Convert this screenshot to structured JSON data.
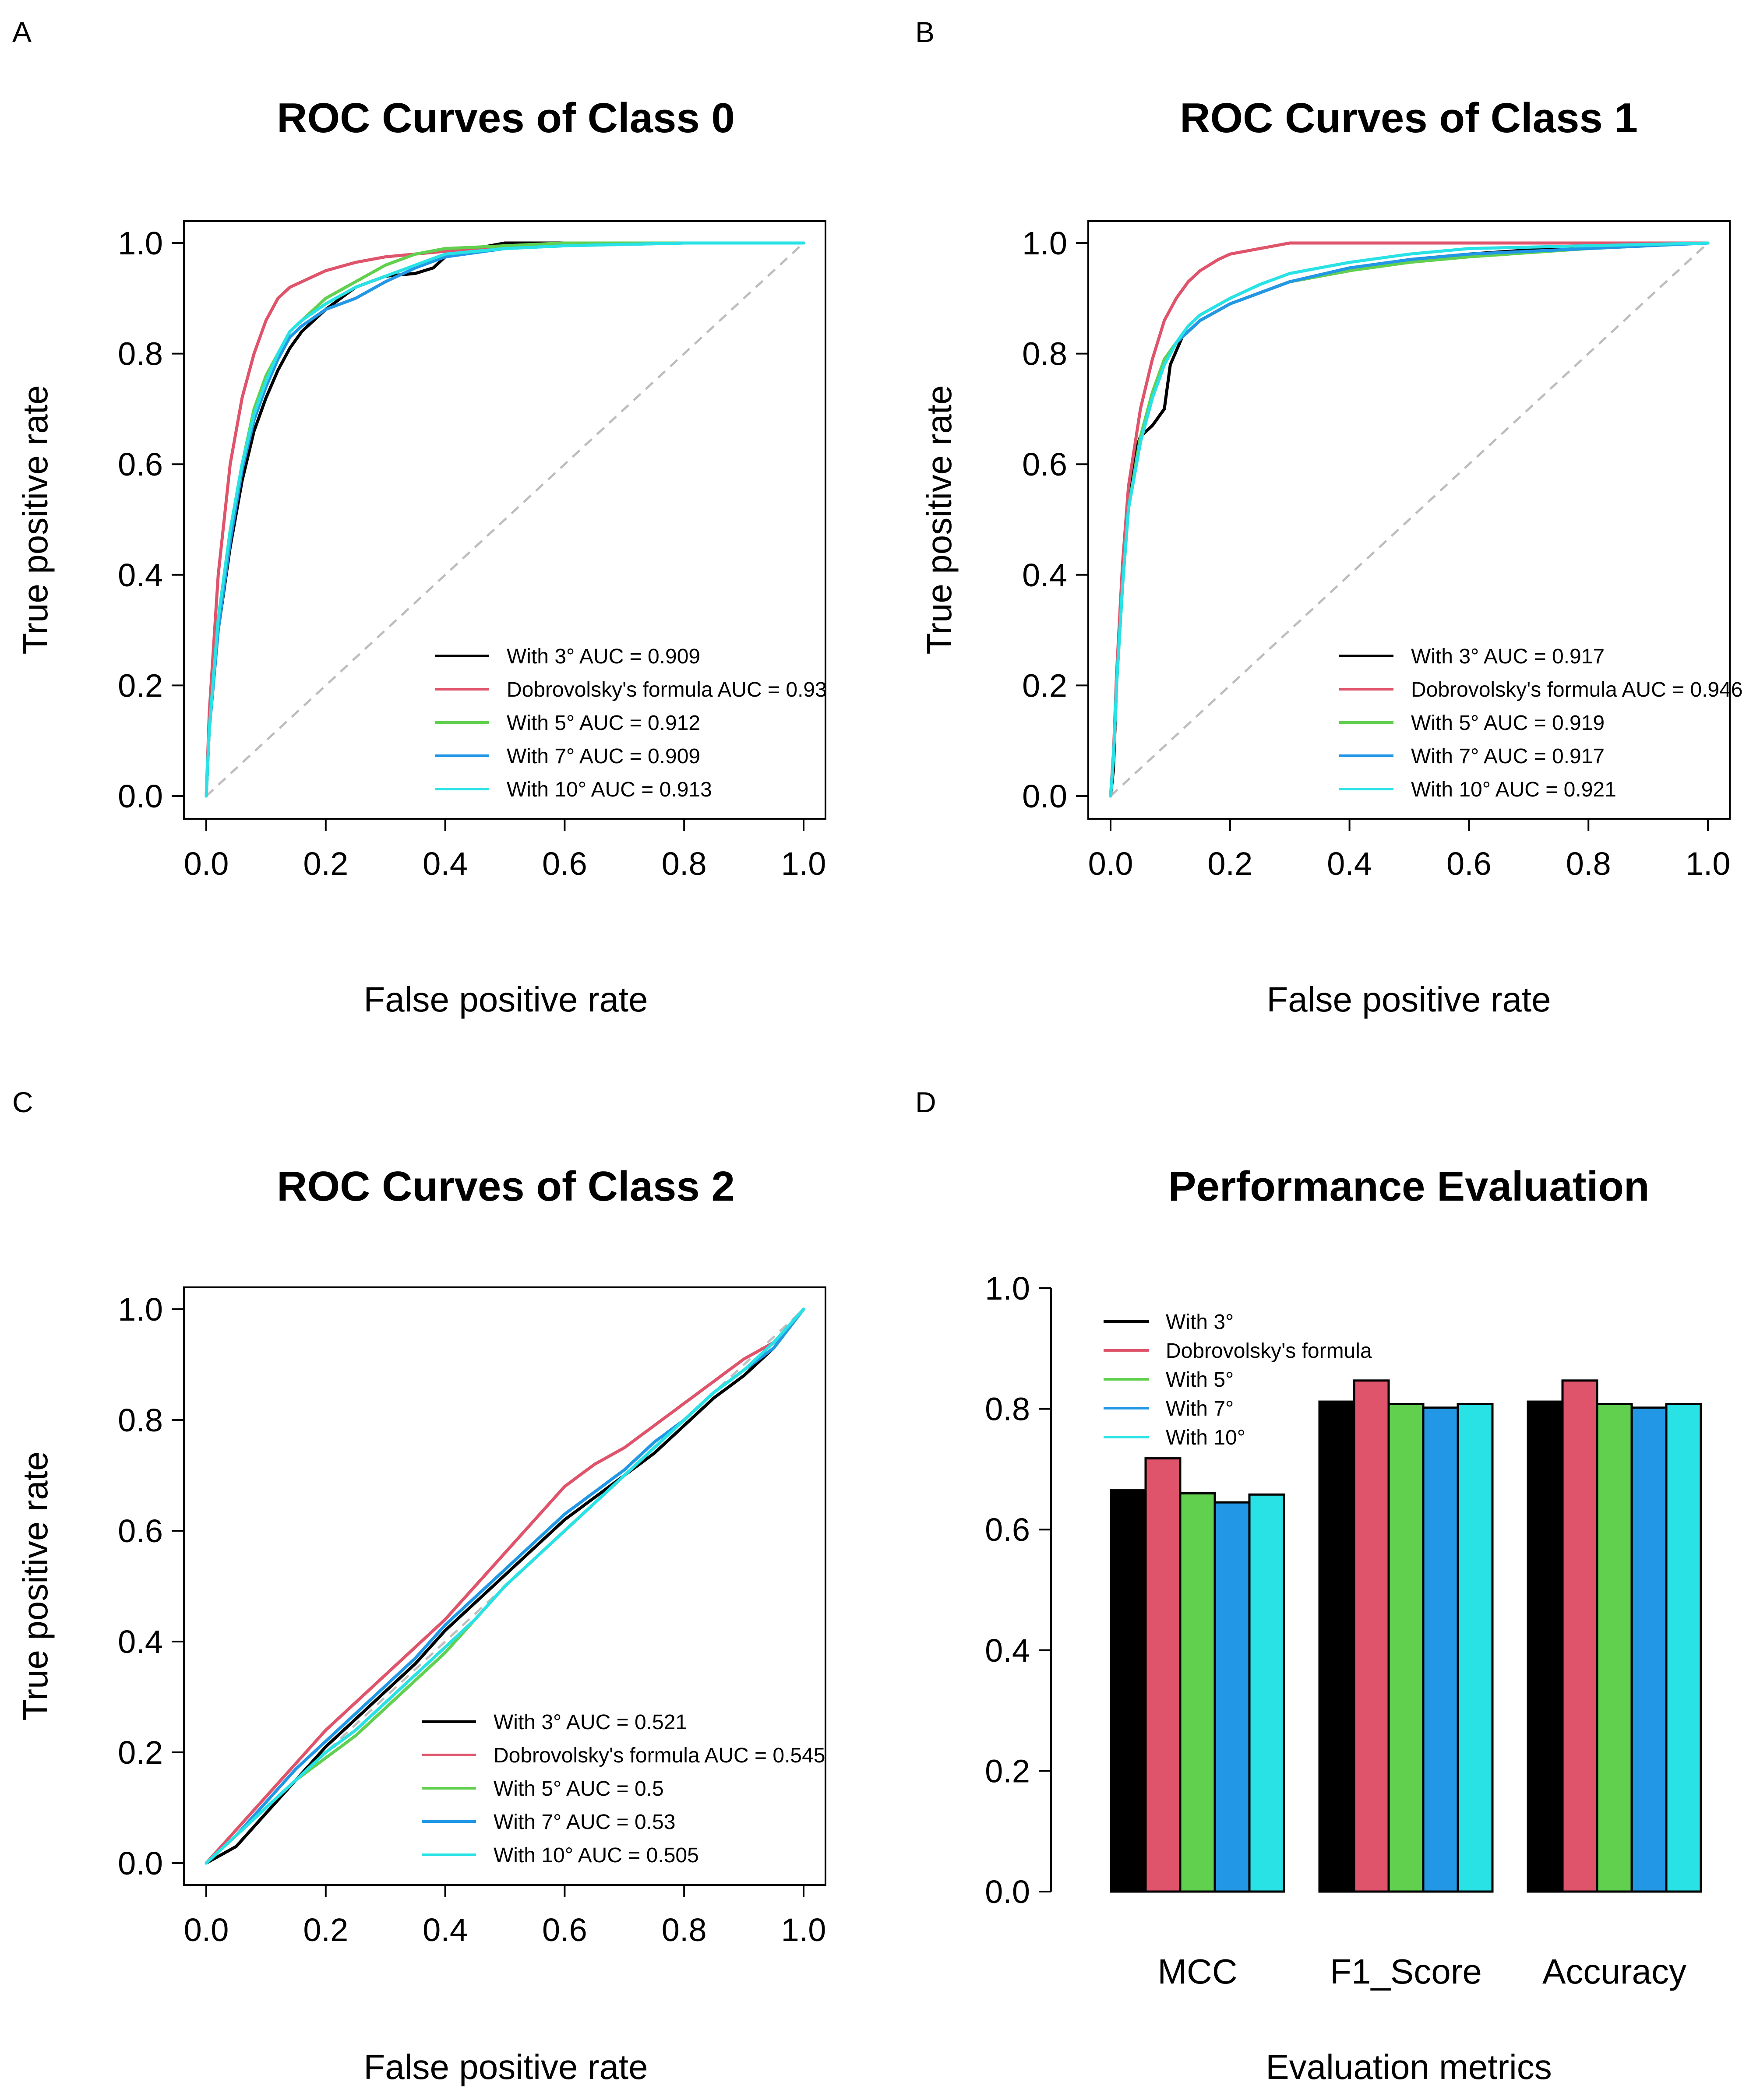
{
  "colors": {
    "With 3°": "#000000",
    "Dobrovolsky's formula": "#df536b",
    "With 5°": "#61d04f",
    "With 7°": "#2297e6",
    "With 10°": "#28e2e5",
    "reference": "#bdbdbd"
  },
  "chart_data": [
    {
      "panel": "A",
      "type": "line",
      "title": "ROC Curves of Class 0",
      "xlabel": "False positive rate",
      "ylabel": "True positive rate",
      "xlim": [
        0,
        1
      ],
      "ylim": [
        0,
        1
      ],
      "xticks": [
        "0.0",
        "0.2",
        "0.4",
        "0.6",
        "0.8",
        "1.0"
      ],
      "yticks": [
        "0.0",
        "0.2",
        "0.4",
        "0.6",
        "0.8",
        "1.0"
      ],
      "grid": false,
      "reference_line": "diagonal dashed",
      "legend_position": "bottom-right",
      "series": [
        {
          "name": "With 3°",
          "legend": "With 3° AUC = 0.909",
          "x": [
            0,
            0.005,
            0.02,
            0.04,
            0.06,
            0.08,
            0.1,
            0.12,
            0.14,
            0.16,
            0.2,
            0.25,
            0.3,
            0.35,
            0.38,
            0.4,
            0.45,
            0.5,
            0.6,
            0.8,
            1
          ],
          "y": [
            0,
            0.12,
            0.3,
            0.45,
            0.57,
            0.66,
            0.72,
            0.77,
            0.81,
            0.84,
            0.88,
            0.92,
            0.94,
            0.945,
            0.955,
            0.975,
            0.99,
            1,
            1,
            1,
            1
          ]
        },
        {
          "name": "Dobrovolsky's formula",
          "legend": "Dobrovolsky's formula AUC = 0.93",
          "x": [
            0,
            0.005,
            0.02,
            0.04,
            0.06,
            0.08,
            0.1,
            0.12,
            0.14,
            0.16,
            0.2,
            0.25,
            0.3,
            0.4,
            0.5,
            0.6,
            0.8,
            1
          ],
          "y": [
            0,
            0.15,
            0.4,
            0.6,
            0.72,
            0.8,
            0.86,
            0.9,
            0.92,
            0.93,
            0.95,
            0.965,
            0.975,
            0.985,
            0.995,
            1,
            1,
            1
          ]
        },
        {
          "name": "With 5°",
          "legend": "With 5° AUC = 0.912",
          "x": [
            0,
            0.005,
            0.02,
            0.04,
            0.06,
            0.08,
            0.1,
            0.12,
            0.14,
            0.16,
            0.2,
            0.25,
            0.3,
            0.35,
            0.4,
            0.5,
            0.6,
            0.8,
            1
          ],
          "y": [
            0,
            0.12,
            0.32,
            0.48,
            0.6,
            0.7,
            0.76,
            0.8,
            0.84,
            0.86,
            0.9,
            0.93,
            0.96,
            0.98,
            0.99,
            0.995,
            1,
            1,
            1
          ]
        },
        {
          "name": "With 7°",
          "legend": "With 7° AUC = 0.909",
          "x": [
            0,
            0.005,
            0.02,
            0.04,
            0.06,
            0.08,
            0.1,
            0.12,
            0.14,
            0.16,
            0.2,
            0.25,
            0.3,
            0.35,
            0.4,
            0.5,
            0.6,
            0.8,
            1
          ],
          "y": [
            0,
            0.12,
            0.3,
            0.46,
            0.59,
            0.68,
            0.74,
            0.79,
            0.83,
            0.85,
            0.88,
            0.9,
            0.93,
            0.955,
            0.975,
            0.99,
            0.995,
            1,
            1
          ]
        },
        {
          "name": "With 10°",
          "legend": "With 10° AUC = 0.913",
          "x": [
            0,
            0.005,
            0.02,
            0.04,
            0.06,
            0.08,
            0.1,
            0.12,
            0.14,
            0.16,
            0.2,
            0.25,
            0.3,
            0.35,
            0.4,
            0.5,
            0.6,
            0.8,
            1
          ],
          "y": [
            0,
            0.12,
            0.32,
            0.48,
            0.6,
            0.69,
            0.75,
            0.8,
            0.84,
            0.86,
            0.89,
            0.92,
            0.94,
            0.96,
            0.98,
            0.99,
            0.995,
            1,
            1
          ]
        }
      ]
    },
    {
      "panel": "B",
      "type": "line",
      "title": "ROC Curves of Class 1",
      "xlabel": "False positive rate",
      "ylabel": "True positive rate",
      "xlim": [
        0,
        1
      ],
      "ylim": [
        0,
        1
      ],
      "xticks": [
        "0.0",
        "0.2",
        "0.4",
        "0.6",
        "0.8",
        "1.0"
      ],
      "yticks": [
        "0.0",
        "0.2",
        "0.4",
        "0.6",
        "0.8",
        "1.0"
      ],
      "grid": false,
      "reference_line": "diagonal dashed",
      "legend_position": "bottom-right",
      "series": [
        {
          "name": "With 3°",
          "legend": "With 3° AUC = 0.917",
          "x": [
            0,
            0.005,
            0.01,
            0.02,
            0.03,
            0.04,
            0.05,
            0.07,
            0.09,
            0.1,
            0.12,
            0.15,
            0.2,
            0.25,
            0.3,
            0.4,
            0.5,
            0.6,
            0.8,
            1
          ],
          "y": [
            0,
            0.05,
            0.2,
            0.4,
            0.55,
            0.62,
            0.65,
            0.67,
            0.7,
            0.78,
            0.83,
            0.86,
            0.89,
            0.91,
            0.93,
            0.95,
            0.97,
            0.98,
            0.995,
            1
          ]
        },
        {
          "name": "Dobrovolsky's formula",
          "legend": "Dobrovolsky's formula AUC = 0.946",
          "x": [
            0,
            0.005,
            0.01,
            0.02,
            0.03,
            0.05,
            0.07,
            0.09,
            0.11,
            0.13,
            0.15,
            0.18,
            0.2,
            0.25,
            0.3,
            0.4,
            0.6,
            1
          ],
          "y": [
            0,
            0.08,
            0.22,
            0.42,
            0.56,
            0.7,
            0.79,
            0.86,
            0.9,
            0.93,
            0.95,
            0.97,
            0.98,
            0.99,
            1,
            1,
            1,
            1
          ]
        },
        {
          "name": "With 5°",
          "legend": "With 5° AUC = 0.919",
          "x": [
            0,
            0.005,
            0.01,
            0.02,
            0.03,
            0.05,
            0.07,
            0.09,
            0.11,
            0.13,
            0.15,
            0.2,
            0.25,
            0.3,
            0.4,
            0.5,
            0.6,
            0.8,
            1
          ],
          "y": [
            0,
            0.07,
            0.2,
            0.38,
            0.52,
            0.65,
            0.73,
            0.79,
            0.82,
            0.84,
            0.86,
            0.89,
            0.91,
            0.93,
            0.95,
            0.965,
            0.975,
            0.99,
            1
          ]
        },
        {
          "name": "With 7°",
          "legend": "With 7° AUC = 0.917",
          "x": [
            0,
            0.005,
            0.01,
            0.02,
            0.03,
            0.05,
            0.07,
            0.09,
            0.11,
            0.13,
            0.15,
            0.2,
            0.25,
            0.3,
            0.4,
            0.5,
            0.6,
            0.8,
            1
          ],
          "y": [
            0,
            0.07,
            0.2,
            0.38,
            0.52,
            0.64,
            0.72,
            0.78,
            0.82,
            0.84,
            0.86,
            0.89,
            0.91,
            0.93,
            0.955,
            0.97,
            0.98,
            0.99,
            1
          ]
        },
        {
          "name": "With 10°",
          "legend": "With 10° AUC = 0.921",
          "x": [
            0,
            0.005,
            0.01,
            0.02,
            0.03,
            0.05,
            0.07,
            0.09,
            0.11,
            0.13,
            0.15,
            0.2,
            0.25,
            0.3,
            0.4,
            0.5,
            0.6,
            0.8,
            1
          ],
          "y": [
            0,
            0.07,
            0.2,
            0.38,
            0.52,
            0.64,
            0.72,
            0.78,
            0.82,
            0.85,
            0.87,
            0.9,
            0.925,
            0.945,
            0.965,
            0.98,
            0.99,
            0.995,
            1
          ]
        }
      ]
    },
    {
      "panel": "C",
      "type": "line",
      "title": "ROC Curves of Class 2",
      "xlabel": "False positive rate",
      "ylabel": "True positive rate",
      "xlim": [
        0,
        1
      ],
      "ylim": [
        0,
        1
      ],
      "xticks": [
        "0.0",
        "0.2",
        "0.4",
        "0.6",
        "0.8",
        "1.0"
      ],
      "yticks": [
        "0.0",
        "0.2",
        "0.4",
        "0.6",
        "0.8",
        "1.0"
      ],
      "grid": false,
      "reference_line": "diagonal dashed",
      "legend_position": "bottom-right",
      "series": [
        {
          "name": "With 3°",
          "legend": "With 3° AUC = 0.521",
          "x": [
            0,
            0.05,
            0.1,
            0.15,
            0.2,
            0.25,
            0.3,
            0.35,
            0.4,
            0.45,
            0.5,
            0.55,
            0.6,
            0.65,
            0.7,
            0.75,
            0.8,
            0.85,
            0.9,
            0.95,
            1
          ],
          "y": [
            0,
            0.03,
            0.09,
            0.15,
            0.21,
            0.26,
            0.31,
            0.36,
            0.42,
            0.47,
            0.52,
            0.57,
            0.62,
            0.66,
            0.7,
            0.74,
            0.79,
            0.84,
            0.88,
            0.93,
            1
          ]
        },
        {
          "name": "Dobrovolsky's formula",
          "legend": "Dobrovolsky's formula AUC = 0.545",
          "x": [
            0,
            0.05,
            0.1,
            0.15,
            0.2,
            0.25,
            0.3,
            0.35,
            0.4,
            0.45,
            0.5,
            0.55,
            0.6,
            0.65,
            0.7,
            0.75,
            0.8,
            0.85,
            0.9,
            0.95,
            1
          ],
          "y": [
            0,
            0.06,
            0.12,
            0.18,
            0.24,
            0.29,
            0.34,
            0.39,
            0.44,
            0.5,
            0.56,
            0.62,
            0.68,
            0.72,
            0.75,
            0.79,
            0.83,
            0.87,
            0.91,
            0.94,
            1
          ]
        },
        {
          "name": "With 5°",
          "legend": "With 5° AUC = 0.5",
          "x": [
            0,
            0.05,
            0.1,
            0.15,
            0.2,
            0.25,
            0.3,
            0.35,
            0.4,
            0.45,
            0.5,
            0.55,
            0.6,
            0.65,
            0.7,
            0.75,
            0.8,
            0.85,
            0.9,
            0.95,
            1
          ],
          "y": [
            0,
            0.05,
            0.1,
            0.15,
            0.19,
            0.23,
            0.28,
            0.33,
            0.38,
            0.44,
            0.5,
            0.55,
            0.6,
            0.65,
            0.7,
            0.75,
            0.8,
            0.85,
            0.89,
            0.93,
            1
          ]
        },
        {
          "name": "With 7°",
          "legend": "With 7° AUC = 0.53",
          "x": [
            0,
            0.05,
            0.1,
            0.15,
            0.2,
            0.25,
            0.3,
            0.35,
            0.4,
            0.45,
            0.5,
            0.55,
            0.6,
            0.65,
            0.7,
            0.75,
            0.8,
            0.85,
            0.9,
            0.95,
            1
          ],
          "y": [
            0,
            0.05,
            0.11,
            0.17,
            0.22,
            0.27,
            0.32,
            0.37,
            0.43,
            0.48,
            0.53,
            0.58,
            0.63,
            0.67,
            0.71,
            0.76,
            0.8,
            0.85,
            0.89,
            0.93,
            1
          ]
        },
        {
          "name": "With 10°",
          "legend": "With 10° AUC = 0.505",
          "x": [
            0,
            0.05,
            0.1,
            0.15,
            0.2,
            0.25,
            0.3,
            0.35,
            0.4,
            0.45,
            0.5,
            0.55,
            0.6,
            0.65,
            0.7,
            0.75,
            0.8,
            0.85,
            0.9,
            0.95,
            1
          ],
          "y": [
            0,
            0.05,
            0.1,
            0.15,
            0.2,
            0.24,
            0.29,
            0.34,
            0.39,
            0.44,
            0.5,
            0.55,
            0.6,
            0.65,
            0.7,
            0.75,
            0.8,
            0.85,
            0.89,
            0.94,
            1
          ]
        }
      ]
    },
    {
      "panel": "D",
      "type": "bar",
      "title": "Performance Evaluation",
      "xlabel": "Evaluation metrics",
      "ylabel": "",
      "categories": [
        "MCC",
        "F1_Score",
        "Accuracy"
      ],
      "ylim": [
        0,
        1
      ],
      "yticks": [
        "0.0",
        "0.2",
        "0.4",
        "0.6",
        "0.8",
        "1.0"
      ],
      "grid": false,
      "legend_position": "top-left",
      "series": [
        {
          "name": "With 3°",
          "legend": "With 3°",
          "values": [
            0.665,
            0.812,
            0.812
          ]
        },
        {
          "name": "Dobrovolsky's formula",
          "legend": "Dobrovolsky's formula",
          "values": [
            0.718,
            0.847,
            0.847
          ]
        },
        {
          "name": "With 5°",
          "legend": "With 5°",
          "values": [
            0.66,
            0.808,
            0.808
          ]
        },
        {
          "name": "With 7°",
          "legend": "With 7°",
          "values": [
            0.645,
            0.802,
            0.802
          ]
        },
        {
          "name": "With 10°",
          "legend": "With 10°",
          "values": [
            0.658,
            0.808,
            0.808
          ]
        }
      ]
    }
  ]
}
